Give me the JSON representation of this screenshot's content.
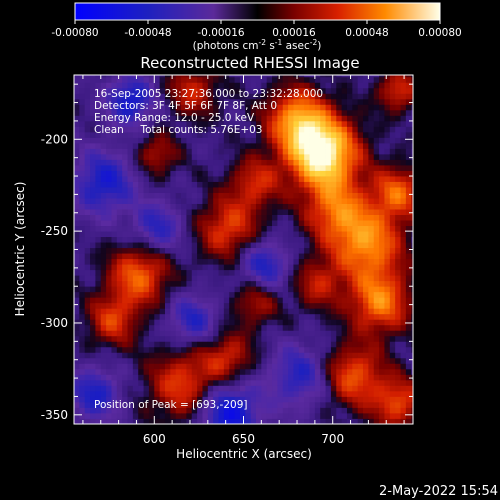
{
  "colorbar": {
    "ticks": [
      "-0.00080",
      "-0.00048",
      "-0.00016",
      "0.00016",
      "0.00048",
      "0.00080"
    ],
    "unit_pre": "(photons cm",
    "unit_exp1": "-2",
    "unit_mid": " s",
    "unit_exp2": "-1",
    "unit_post": " asec",
    "unit_exp3": "-2",
    "unit_end": ")"
  },
  "annotations": {
    "time_range": "16-Sep-2005 23:27:36.000 to 23:32:28.000",
    "detectors": "Detectors: 3F 4F 5F 6F 7F 8F, Att 0",
    "energy": "Energy Range: 12.0 - 25.0 keV",
    "clean": "Clean     Total counts: 5.76E+03",
    "peak": "Position of Peak = [693,-209]"
  },
  "footer": {
    "timestamp": "2-May-2022 15:54"
  },
  "colors": {
    "background": "#000000",
    "axis": "#ffffff"
  },
  "chart_data": {
    "type": "heatmap",
    "title": "Reconstructed RHESSI Image",
    "xlabel": "Heliocentric X (arcsec)",
    "ylabel": "Heliocentric Y (arcsec)",
    "xlim": [
      555,
      745
    ],
    "ylim": [
      -355,
      -165
    ],
    "xticks": [
      600,
      650,
      700
    ],
    "yticks": [
      -200,
      -250,
      -300,
      -350
    ],
    "colormap": "rhessi-bipolar",
    "value_range": [
      -0.0008,
      0.0008
    ],
    "peak": [
      693,
      -209
    ]
  }
}
